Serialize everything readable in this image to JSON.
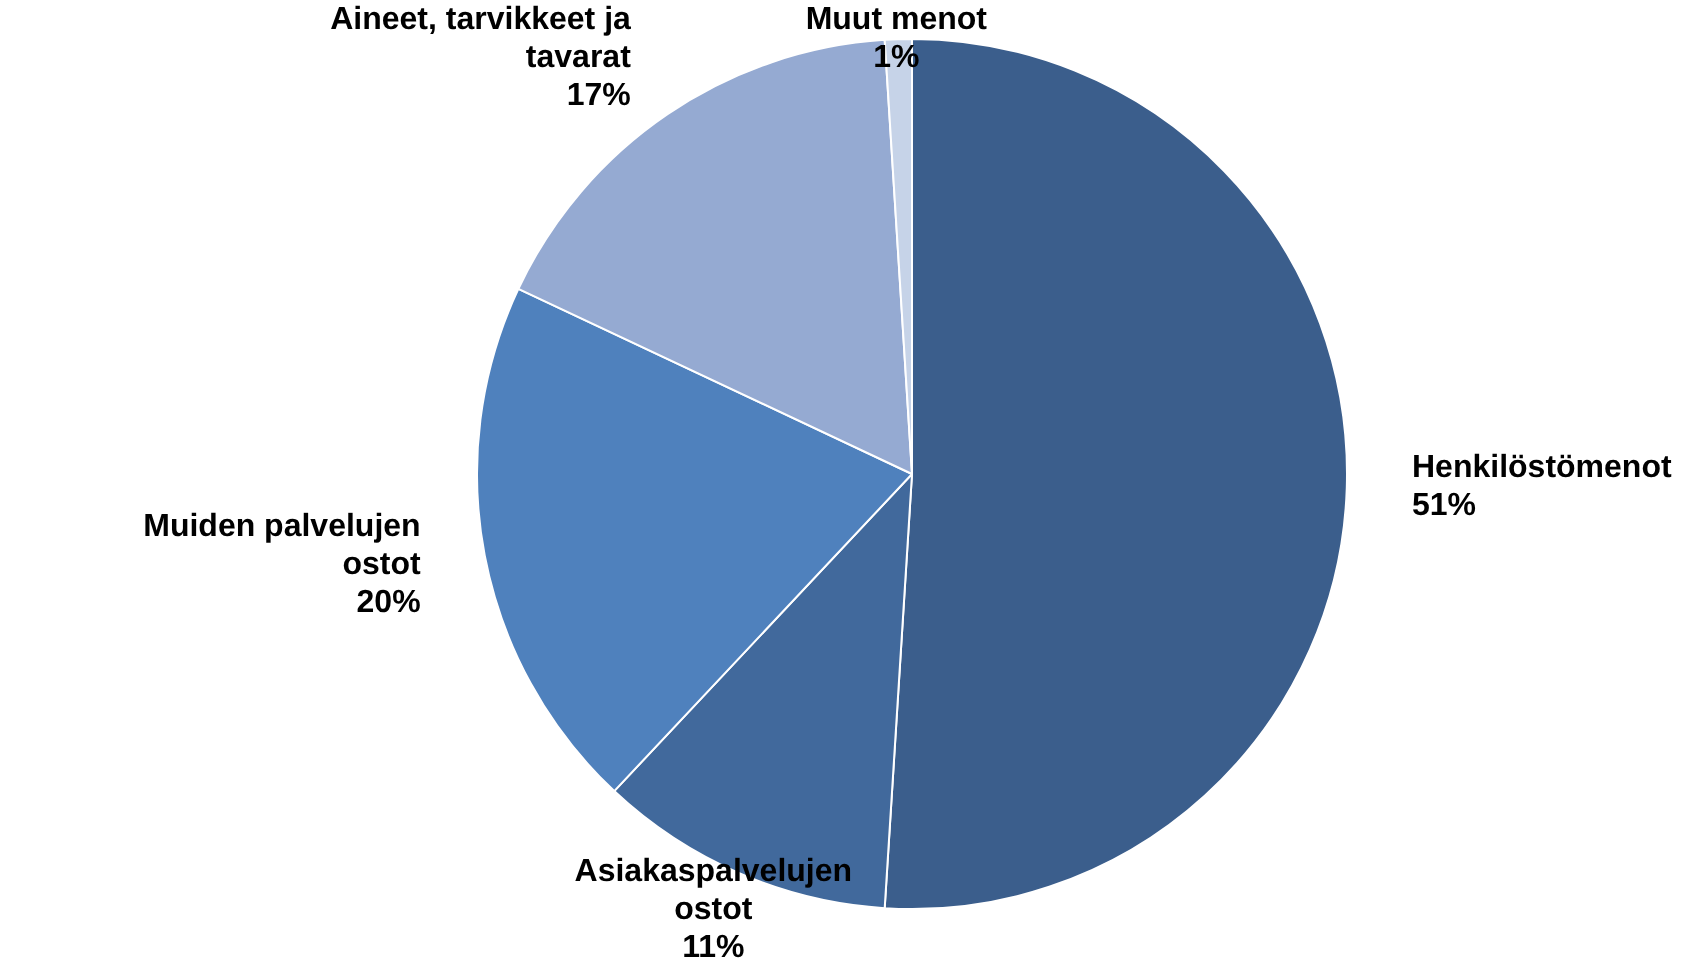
{
  "chart_data": {
    "type": "pie",
    "categories": [
      "Henkilöstömenot",
      "Asiakaspalvelujen ostot",
      "Muiden palvelujen ostot",
      "Aineet, tarvikkeet ja tavarat",
      "Muut menot"
    ],
    "values": [
      51,
      11,
      20,
      17,
      1
    ],
    "colors": [
      "#3b5e8c",
      "#41699c",
      "#4f81bd",
      "#95aad2",
      "#c6d3e8"
    ],
    "value_labels": [
      "51%",
      "11%",
      "20%",
      "17%",
      "1%"
    ],
    "legend": false
  }
}
